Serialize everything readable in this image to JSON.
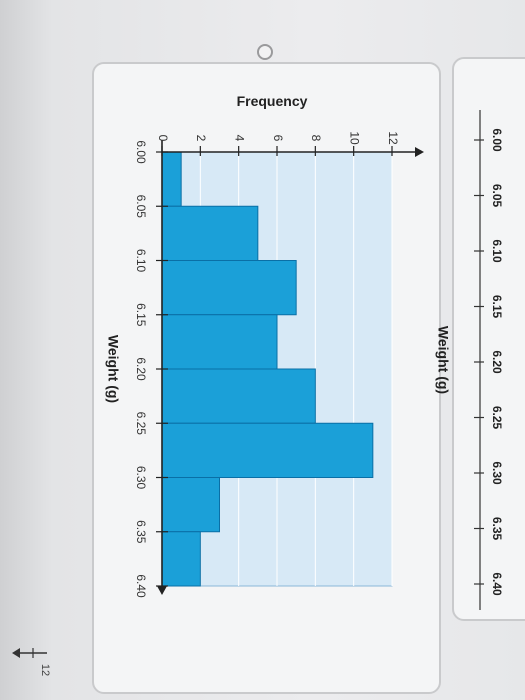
{
  "top_axis": {
    "ticks": [
      "6.00",
      "6.05",
      "6.10",
      "6.15",
      "6.20",
      "6.25",
      "6.30",
      "6.35",
      "6.40"
    ],
    "xlabel": "Weight (g)"
  },
  "bottom_fragment": {
    "tick_label": "12"
  },
  "chart_data": {
    "type": "bar",
    "title": "",
    "xlabel": "Weight (g)",
    "ylabel": "Frequency",
    "categories": [
      "6.00-6.05",
      "6.05-6.10",
      "6.10-6.15",
      "6.15-6.20",
      "6.20-6.25",
      "6.25-6.30",
      "6.30-6.35",
      "6.35-6.40"
    ],
    "bin_edges": [
      6.0,
      6.05,
      6.1,
      6.15,
      6.2,
      6.25,
      6.3,
      6.35,
      6.4
    ],
    "values": [
      1,
      5,
      7,
      6,
      8,
      11,
      3,
      2
    ],
    "xlim": [
      6.0,
      6.4
    ],
    "ylim": [
      0,
      12
    ],
    "xticks": [
      "6.00",
      "6.05",
      "6.10",
      "6.15",
      "6.20",
      "6.25",
      "6.30",
      "6.35",
      "6.40"
    ],
    "yticks": [
      "0",
      "2",
      "4",
      "6",
      "8",
      "10",
      "12"
    ],
    "grid": true,
    "bar_color": "#1ba0d8",
    "background_color": "#d7e9f6"
  }
}
